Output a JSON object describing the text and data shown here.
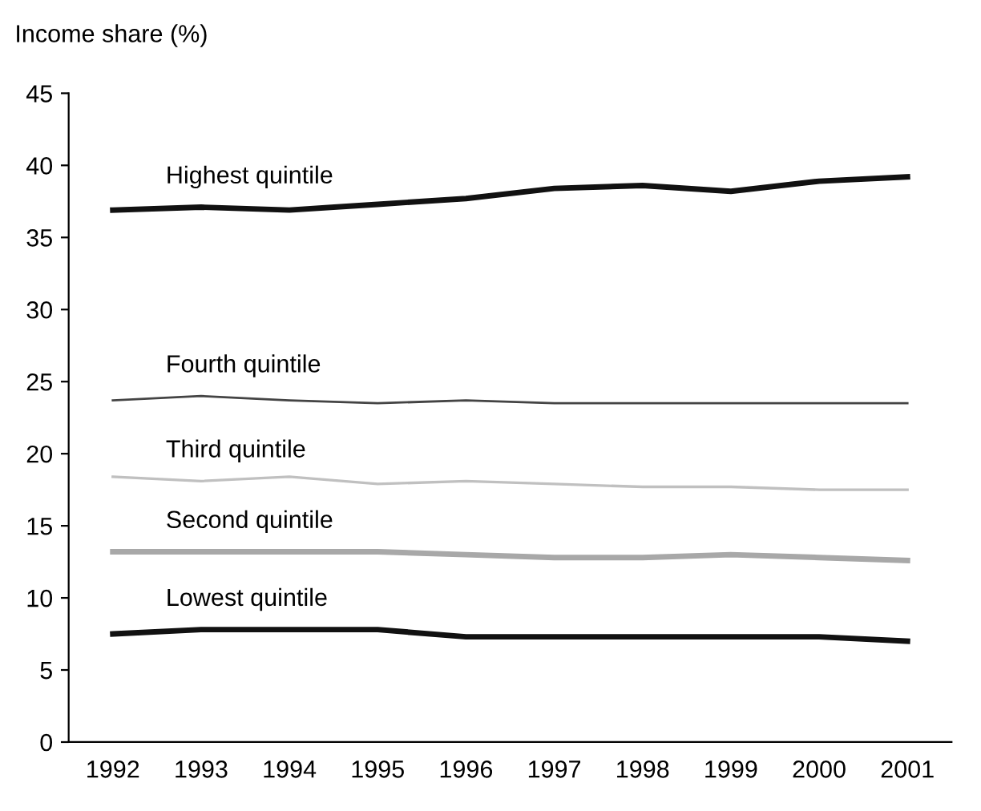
{
  "chart_data": {
    "type": "line",
    "ylabel": "Income share (%)",
    "categories": [
      "1992",
      "1993",
      "1994",
      "1995",
      "1996",
      "1997",
      "1998",
      "1999",
      "2000",
      "2001"
    ],
    "series": [
      {
        "name": "Highest quintile",
        "color": "#111111",
        "values": [
          36.9,
          37.1,
          36.9,
          37.3,
          37.7,
          38.4,
          38.6,
          38.2,
          38.9,
          39.2
        ]
      },
      {
        "name": "Fourth quintile",
        "color": "#444444",
        "values": [
          23.7,
          24.0,
          23.7,
          23.5,
          23.7,
          23.5,
          23.5,
          23.5,
          23.5,
          23.5
        ]
      },
      {
        "name": "Third quintile",
        "color": "#c0c0c0",
        "values": [
          18.4,
          18.1,
          18.4,
          17.9,
          18.1,
          17.9,
          17.7,
          17.7,
          17.5,
          17.5
        ]
      },
      {
        "name": "Second quintile",
        "color": "#a8a8a8",
        "values": [
          13.2,
          13.2,
          13.2,
          13.2,
          13.0,
          12.8,
          12.8,
          13.0,
          12.8,
          12.6
        ]
      },
      {
        "name": "Lowest quintile",
        "color": "#111111",
        "values": [
          7.5,
          7.8,
          7.8,
          7.8,
          7.3,
          7.3,
          7.3,
          7.3,
          7.3,
          7.0
        ]
      }
    ],
    "ylim": [
      0,
      45
    ],
    "yticks": [
      0,
      5,
      10,
      15,
      20,
      25,
      30,
      35,
      40,
      45
    ],
    "grid": false,
    "legend": false,
    "marker": "none",
    "line_style": "solid"
  }
}
